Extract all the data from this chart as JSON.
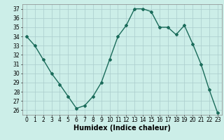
{
  "x": [
    0,
    1,
    2,
    3,
    4,
    5,
    6,
    7,
    8,
    9,
    10,
    11,
    12,
    13,
    14,
    15,
    16,
    17,
    18,
    19,
    20,
    21,
    22,
    23
  ],
  "y": [
    34.0,
    33.0,
    31.5,
    30.0,
    28.8,
    27.5,
    26.2,
    26.5,
    27.5,
    29.0,
    31.5,
    34.0,
    35.2,
    37.0,
    37.0,
    36.7,
    35.0,
    35.0,
    34.2,
    35.2,
    33.2,
    31.0,
    28.2,
    25.7
  ],
  "line_color": "#1a6b5a",
  "marker": "D",
  "markersize": 2.0,
  "linewidth": 1.0,
  "xlabel": "Humidex (Indice chaleur)",
  "xlim": [
    -0.5,
    23.5
  ],
  "ylim": [
    25.5,
    37.5
  ],
  "yticks": [
    26,
    27,
    28,
    29,
    30,
    31,
    32,
    33,
    34,
    35,
    36,
    37
  ],
  "xticks": [
    0,
    1,
    2,
    3,
    4,
    5,
    6,
    7,
    8,
    9,
    10,
    11,
    12,
    13,
    14,
    15,
    16,
    17,
    18,
    19,
    20,
    21,
    22,
    23
  ],
  "bg_color": "#cceee8",
  "grid_color": "#aacccc",
  "tick_label_fontsize": 5.5,
  "xlabel_fontsize": 7.0
}
